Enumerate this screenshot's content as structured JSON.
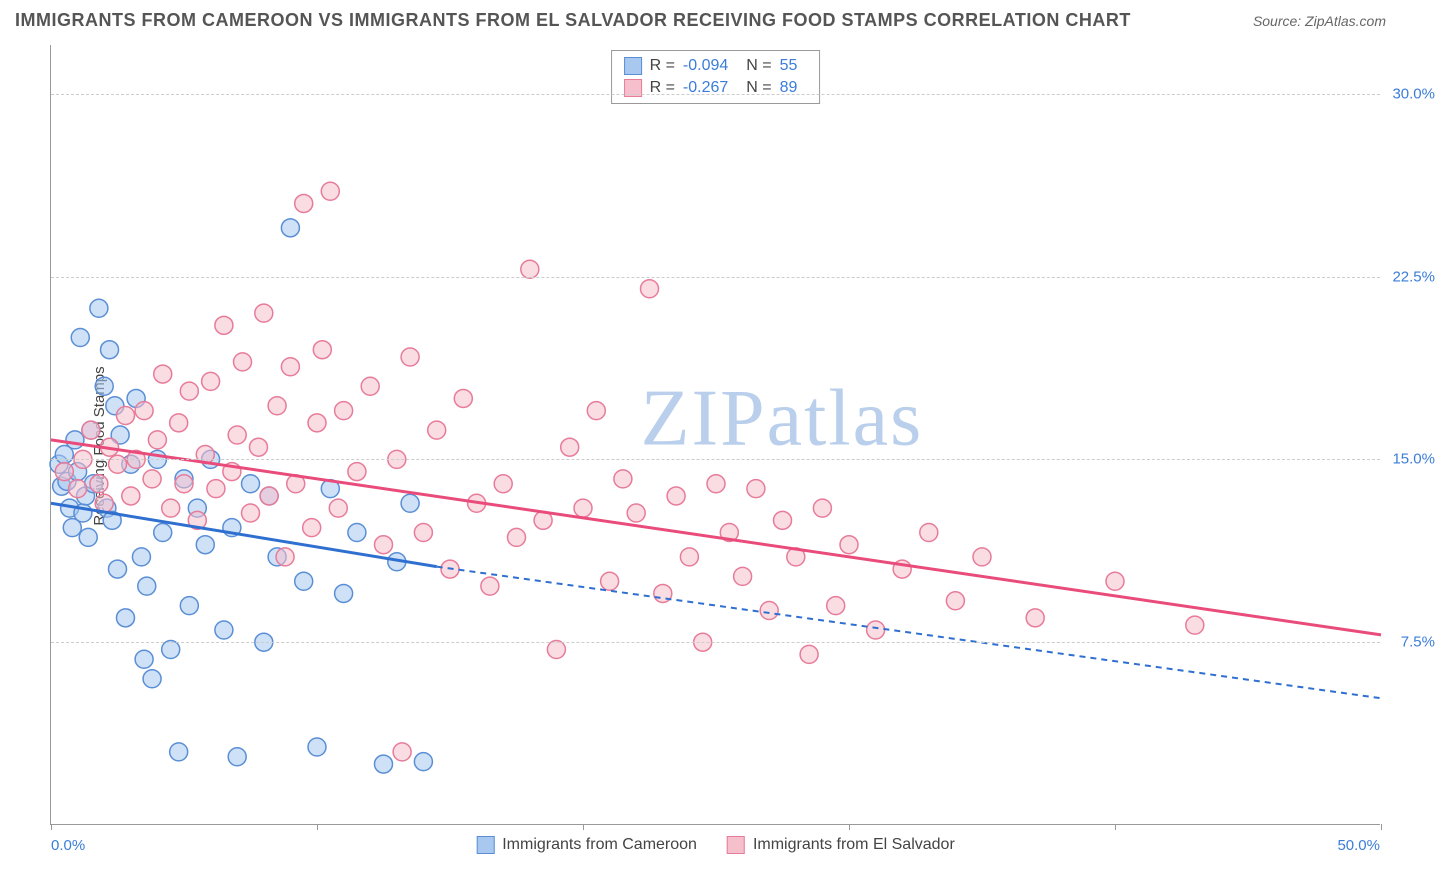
{
  "title": "IMMIGRANTS FROM CAMEROON VS IMMIGRANTS FROM EL SALVADOR RECEIVING FOOD STAMPS CORRELATION CHART",
  "source": "Source: ZipAtlas.com",
  "watermark": "ZIPatlas",
  "y_axis_title": "Receiving Food Stamps",
  "chart": {
    "type": "scatter",
    "xlim": [
      0,
      50
    ],
    "ylim": [
      0,
      32
    ],
    "x_tick_positions": [
      0,
      10,
      20,
      30,
      40,
      50
    ],
    "x_label_min": "0.0%",
    "x_label_max": "50.0%",
    "y_ticks": [
      {
        "v": 7.5,
        "label": "7.5%"
      },
      {
        "v": 15.0,
        "label": "15.0%"
      },
      {
        "v": 22.5,
        "label": "22.5%"
      },
      {
        "v": 30.0,
        "label": "30.0%"
      }
    ],
    "grid_color": "#cccccc",
    "background_color": "#ffffff",
    "axis_color": "#999999",
    "tick_label_color": "#3b7dd8",
    "marker_radius": 9,
    "marker_opacity": 0.55,
    "series": [
      {
        "name": "Immigrants from Cameroon",
        "color_fill": "#a8c8ef",
        "color_stroke": "#5a8fd6",
        "line_color": "#2e6fd0",
        "R": "-0.094",
        "N": "55",
        "trend": {
          "x1": 0,
          "y1": 13.2,
          "x2": 14.5,
          "y2": 10.6,
          "dash_from_x": 14.5,
          "dash_to_x": 50,
          "dash_to_y": 5.2
        },
        "points": [
          [
            0.3,
            14.8
          ],
          [
            0.4,
            13.9
          ],
          [
            0.5,
            15.2
          ],
          [
            0.6,
            14.1
          ],
          [
            0.7,
            13.0
          ],
          [
            0.8,
            12.2
          ],
          [
            0.9,
            15.8
          ],
          [
            1.0,
            14.5
          ],
          [
            1.1,
            20.0
          ],
          [
            1.2,
            12.8
          ],
          [
            1.3,
            13.5
          ],
          [
            1.4,
            11.8
          ],
          [
            1.5,
            16.2
          ],
          [
            1.6,
            14.0
          ],
          [
            1.8,
            21.2
          ],
          [
            2.0,
            18.0
          ],
          [
            2.1,
            13.0
          ],
          [
            2.2,
            19.5
          ],
          [
            2.3,
            12.5
          ],
          [
            2.4,
            17.2
          ],
          [
            2.5,
            10.5
          ],
          [
            2.6,
            16.0
          ],
          [
            2.8,
            8.5
          ],
          [
            3.0,
            14.8
          ],
          [
            3.2,
            17.5
          ],
          [
            3.4,
            11.0
          ],
          [
            3.5,
            6.8
          ],
          [
            3.6,
            9.8
          ],
          [
            3.8,
            6.0
          ],
          [
            4.0,
            15.0
          ],
          [
            4.2,
            12.0
          ],
          [
            4.5,
            7.2
          ],
          [
            4.8,
            3.0
          ],
          [
            5.0,
            14.2
          ],
          [
            5.2,
            9.0
          ],
          [
            5.5,
            13.0
          ],
          [
            5.8,
            11.5
          ],
          [
            6.0,
            15.0
          ],
          [
            6.5,
            8.0
          ],
          [
            6.8,
            12.2
          ],
          [
            7.0,
            2.8
          ],
          [
            7.5,
            14.0
          ],
          [
            8.0,
            7.5
          ],
          [
            8.2,
            13.5
          ],
          [
            8.5,
            11.0
          ],
          [
            9.0,
            24.5
          ],
          [
            9.5,
            10.0
          ],
          [
            10.0,
            3.2
          ],
          [
            10.5,
            13.8
          ],
          [
            11.0,
            9.5
          ],
          [
            11.5,
            12.0
          ],
          [
            12.5,
            2.5
          ],
          [
            13.0,
            10.8
          ],
          [
            13.5,
            13.2
          ],
          [
            14.0,
            2.6
          ]
        ]
      },
      {
        "name": "Immigrants from El Salvador",
        "color_fill": "#f5c0cc",
        "color_stroke": "#e77c9a",
        "line_color": "#e94b7a",
        "R": "-0.267",
        "N": "89",
        "trend": {
          "x1": 0,
          "y1": 15.8,
          "x2": 50,
          "y2": 7.8
        },
        "points": [
          [
            0.5,
            14.5
          ],
          [
            1.0,
            13.8
          ],
          [
            1.2,
            15.0
          ],
          [
            1.5,
            16.2
          ],
          [
            1.8,
            14.0
          ],
          [
            2.0,
            13.2
          ],
          [
            2.2,
            15.5
          ],
          [
            2.5,
            14.8
          ],
          [
            2.8,
            16.8
          ],
          [
            3.0,
            13.5
          ],
          [
            3.2,
            15.0
          ],
          [
            3.5,
            17.0
          ],
          [
            3.8,
            14.2
          ],
          [
            4.0,
            15.8
          ],
          [
            4.2,
            18.5
          ],
          [
            4.5,
            13.0
          ],
          [
            4.8,
            16.5
          ],
          [
            5.0,
            14.0
          ],
          [
            5.2,
            17.8
          ],
          [
            5.5,
            12.5
          ],
          [
            5.8,
            15.2
          ],
          [
            6.0,
            18.2
          ],
          [
            6.2,
            13.8
          ],
          [
            6.5,
            20.5
          ],
          [
            6.8,
            14.5
          ],
          [
            7.0,
            16.0
          ],
          [
            7.2,
            19.0
          ],
          [
            7.5,
            12.8
          ],
          [
            7.8,
            15.5
          ],
          [
            8.0,
            21.0
          ],
          [
            8.2,
            13.5
          ],
          [
            8.5,
            17.2
          ],
          [
            8.8,
            11.0
          ],
          [
            9.0,
            18.8
          ],
          [
            9.2,
            14.0
          ],
          [
            9.5,
            25.5
          ],
          [
            9.8,
            12.2
          ],
          [
            10.0,
            16.5
          ],
          [
            10.2,
            19.5
          ],
          [
            10.5,
            26.0
          ],
          [
            10.8,
            13.0
          ],
          [
            11.0,
            17.0
          ],
          [
            11.5,
            14.5
          ],
          [
            12.0,
            18.0
          ],
          [
            12.5,
            11.5
          ],
          [
            13.0,
            15.0
          ],
          [
            13.2,
            3.0
          ],
          [
            13.5,
            19.2
          ],
          [
            14.0,
            12.0
          ],
          [
            14.5,
            16.2
          ],
          [
            15.0,
            10.5
          ],
          [
            15.5,
            17.5
          ],
          [
            16.0,
            13.2
          ],
          [
            16.5,
            9.8
          ],
          [
            17.0,
            14.0
          ],
          [
            17.5,
            11.8
          ],
          [
            18.0,
            22.8
          ],
          [
            18.5,
            12.5
          ],
          [
            19.0,
            7.2
          ],
          [
            19.5,
            15.5
          ],
          [
            20.0,
            13.0
          ],
          [
            20.5,
            17.0
          ],
          [
            21.0,
            10.0
          ],
          [
            21.5,
            14.2
          ],
          [
            22.0,
            12.8
          ],
          [
            22.5,
            22.0
          ],
          [
            23.0,
            9.5
          ],
          [
            23.5,
            13.5
          ],
          [
            24.0,
            11.0
          ],
          [
            24.5,
            7.5
          ],
          [
            25.0,
            14.0
          ],
          [
            25.5,
            12.0
          ],
          [
            26.0,
            10.2
          ],
          [
            26.5,
            13.8
          ],
          [
            27.0,
            8.8
          ],
          [
            27.5,
            12.5
          ],
          [
            28.0,
            11.0
          ],
          [
            28.5,
            7.0
          ],
          [
            29.0,
            13.0
          ],
          [
            29.5,
            9.0
          ],
          [
            30.0,
            11.5
          ],
          [
            31.0,
            8.0
          ],
          [
            32.0,
            10.5
          ],
          [
            33.0,
            12.0
          ],
          [
            34.0,
            9.2
          ],
          [
            35.0,
            11.0
          ],
          [
            37.0,
            8.5
          ],
          [
            40.0,
            10.0
          ],
          [
            43.0,
            8.2
          ]
        ]
      }
    ]
  },
  "legend": {
    "series1_label": "Immigrants from Cameroon",
    "series2_label": "Immigrants from El Salvador"
  },
  "stats_labels": {
    "R": "R =",
    "N": "N ="
  }
}
